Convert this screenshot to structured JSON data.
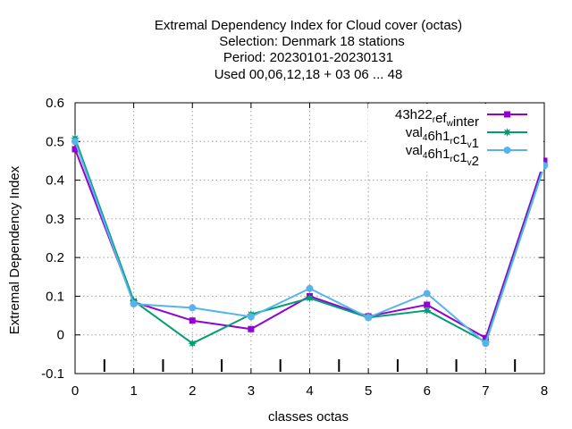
{
  "chart_data": {
    "type": "line",
    "title_lines": [
      "Extremal Dependency Index  for Cloud cover (octas)",
      "Selection: Denmark      18 stations",
      "Period: 20230101-20230131",
      "Used  00,06,12,18  + 03 06 ... 48"
    ],
    "xlabel": "classes octas",
    "ylabel": "Extremal Dependency Index",
    "xlim": [
      0,
      8
    ],
    "ylim": [
      -0.1,
      0.6
    ],
    "x_ticks": [
      0,
      1,
      2,
      3,
      4,
      5,
      6,
      7,
      8
    ],
    "y_ticks": [
      -0.1,
      0,
      0.1,
      0.2,
      0.3,
      0.4,
      0.5,
      0.6
    ],
    "y_tick_labels": [
      "-0.1",
      "0",
      "0.1",
      "0.2",
      "0.3",
      "0.4",
      "0.5",
      "0.6"
    ],
    "minor_ticks_x": [
      0.5,
      1.5,
      2.5,
      3.5,
      4.5,
      5.5,
      6.5,
      7.5
    ],
    "grid": true,
    "legend_position": "top-right",
    "x": [
      0,
      1,
      2,
      3,
      4,
      5,
      6,
      7,
      8
    ],
    "series": [
      {
        "legend": [
          {
            "text": "43h22",
            "sub": false
          },
          {
            "text": "r",
            "sub": true
          },
          {
            "text": "ef",
            "sub": false
          },
          {
            "text": "w",
            "sub": true
          },
          {
            "text": "inter",
            "sub": false
          }
        ],
        "color": "#9400d3",
        "marker": "square",
        "values": [
          0.48,
          0.085,
          0.037,
          0.015,
          0.1,
          0.048,
          0.078,
          -0.008,
          0.45
        ]
      },
      {
        "legend": [
          {
            "text": "val",
            "sub": false
          },
          {
            "text": "4",
            "sub": true
          },
          {
            "text": "6h1",
            "sub": false
          },
          {
            "text": "r",
            "sub": true
          },
          {
            "text": "c1",
            "sub": false
          },
          {
            "text": "v",
            "sub": true
          },
          {
            "text": "1",
            "sub": false
          }
        ],
        "color": "#009e73",
        "marker": "star",
        "values": [
          0.508,
          0.088,
          -0.022,
          0.053,
          0.095,
          0.045,
          0.063,
          -0.018,
          0.44
        ]
      },
      {
        "legend": [
          {
            "text": "val",
            "sub": false
          },
          {
            "text": "4",
            "sub": true
          },
          {
            "text": "6h1",
            "sub": false
          },
          {
            "text": "r",
            "sub": true
          },
          {
            "text": "c1",
            "sub": false
          },
          {
            "text": "v",
            "sub": true
          },
          {
            "text": "2",
            "sub": false
          }
        ],
        "color": "#56b4e9",
        "marker": "circle",
        "values": [
          0.5,
          0.08,
          0.07,
          0.047,
          0.12,
          0.045,
          0.107,
          -0.022,
          0.437
        ]
      }
    ]
  }
}
